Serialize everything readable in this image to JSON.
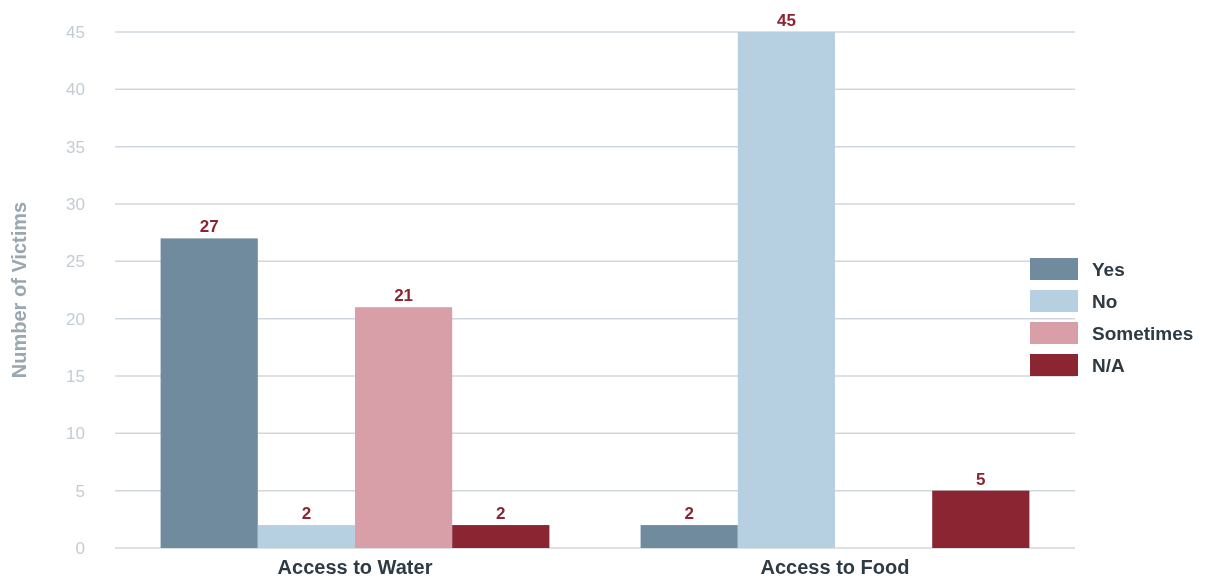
{
  "chart_data": {
    "type": "bar",
    "ylabel": "Number of Victims",
    "categories": [
      "Access to Water",
      "Access to Food"
    ],
    "series": [
      {
        "name": "Yes",
        "color": "#6f8b9d",
        "values": [
          27,
          2
        ]
      },
      {
        "name": "No",
        "color": "#b6d0e1",
        "values": [
          2,
          45
        ]
      },
      {
        "name": "Sometimes",
        "color": "#d99fa9",
        "values": [
          21,
          null
        ]
      },
      {
        "name": "N/A",
        "color": "#8b2532",
        "values": [
          2,
          5
        ]
      }
    ],
    "ylim": [
      0,
      45
    ],
    "yticks": [
      0,
      5,
      10,
      15,
      20,
      25,
      30,
      35,
      40,
      45
    ],
    "grid": "y",
    "legend": "right",
    "data_labels": true
  }
}
